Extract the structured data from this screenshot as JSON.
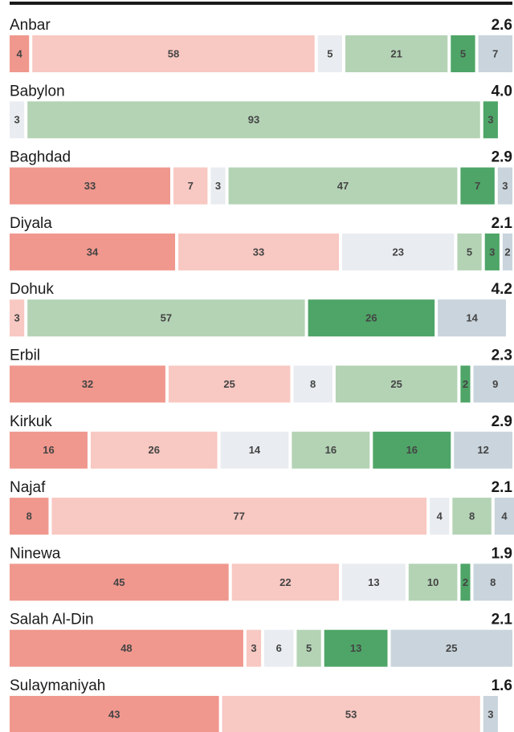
{
  "chart_data": {
    "type": "stacked-bar",
    "categories": [
      "Anbar",
      "Babylon",
      "Baghdad",
      "Diyala",
      "Dohuk",
      "Erbil",
      "Kirkuk",
      "Najaf",
      "Ninewa",
      "Salah Al-Din",
      "Sulaymaniyah"
    ],
    "scores": {
      "values": [
        2.6,
        4.0,
        2.9,
        2.1,
        4.2,
        2.3,
        2.9,
        2.1,
        1.9,
        2.1,
        1.6
      ],
      "value_labels": [
        "2.6",
        "4.0",
        "2.9",
        "2.1",
        "4.2",
        "2.3",
        "2.9",
        "2.1",
        "1.9",
        "2.1",
        "1.6"
      ]
    },
    "xlim": [
      0,
      100
    ],
    "series": [
      {
        "color": "#f0988e",
        "values": [
          4,
          null,
          33,
          34,
          null,
          32,
          16,
          8,
          45,
          48,
          43
        ]
      },
      {
        "color": "#f8c8c2",
        "values": [
          58,
          null,
          7,
          33,
          3,
          25,
          26,
          77,
          22,
          3,
          53
        ]
      },
      {
        "color": "#e9ecf0",
        "values": [
          5,
          3,
          3,
          23,
          null,
          8,
          14,
          4,
          13,
          6,
          null
        ]
      },
      {
        "color": "#b4d3b5",
        "values": [
          21,
          93,
          47,
          5,
          57,
          25,
          16,
          8,
          10,
          5,
          null
        ]
      },
      {
        "color": "#4ea567",
        "values": [
          5,
          3,
          7,
          3,
          26,
          2,
          16,
          null,
          2,
          13,
          null
        ]
      },
      {
        "color": "#c9d4dc",
        "values": [
          7,
          null,
          3,
          2,
          14,
          9,
          12,
          4,
          8,
          25,
          3
        ]
      }
    ]
  }
}
